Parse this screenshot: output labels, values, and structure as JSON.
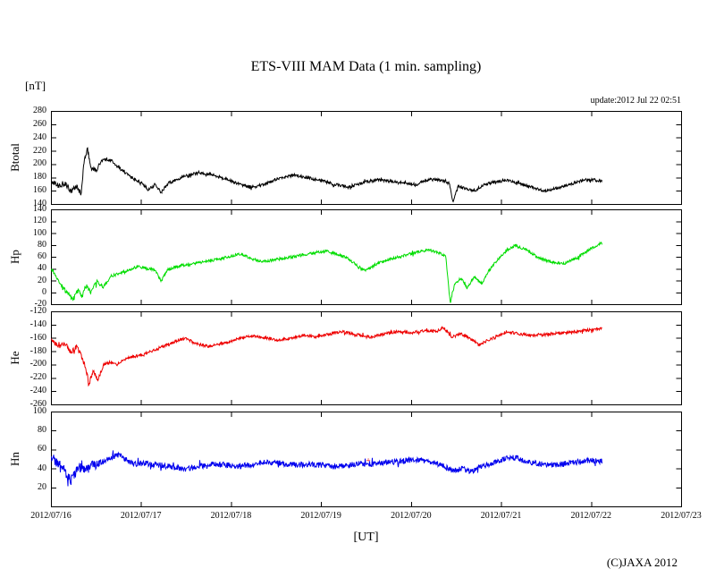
{
  "page": {
    "title": "ETS-VIII MAM Data (1 min. sampling)",
    "unit_label": "[nT]",
    "update_text": "update:2012 Jul 22 02:51",
    "x_axis_label": "[UT]",
    "copyright": "(C)JAXA 2012"
  },
  "x_ticks": [
    "2012/07/16",
    "2012/07/17",
    "2012/07/18",
    "2012/07/19",
    "2012/07/20",
    "2012/07/21",
    "2012/07/22",
    "2012/07/23"
  ],
  "chart_data": [
    {
      "type": "line",
      "name": "Btotal",
      "ylabel": "Btotal",
      "color": "#000000",
      "ylim": [
        140,
        280
      ],
      "yticks": [
        140,
        160,
        180,
        200,
        220,
        240,
        260,
        280
      ],
      "x_range_days": [
        0,
        7
      ],
      "grid": false,
      "noise_amp": 2.2,
      "x_days": [
        0,
        0.08,
        0.15,
        0.22,
        0.28,
        0.33,
        0.36,
        0.4,
        0.44,
        0.5,
        0.55,
        0.62,
        0.68,
        0.75,
        0.82,
        0.9,
        1.0,
        1.08,
        1.15,
        1.22,
        1.3,
        1.4,
        1.55,
        1.65,
        1.75,
        1.85,
        1.95,
        2.1,
        2.25,
        2.4,
        2.55,
        2.7,
        2.85,
        3.0,
        3.15,
        3.3,
        3.45,
        3.6,
        3.75,
        3.9,
        4.05,
        4.2,
        4.33,
        4.42,
        4.46,
        4.52,
        4.6,
        4.7,
        4.8,
        4.95,
        5.05,
        5.2,
        5.35,
        5.5,
        5.65,
        5.8,
        5.95,
        6.12
      ],
      "values": [
        175,
        168,
        172,
        160,
        168,
        155,
        200,
        225,
        195,
        192,
        205,
        208,
        205,
        195,
        188,
        180,
        172,
        162,
        170,
        158,
        172,
        178,
        185,
        188,
        186,
        182,
        178,
        170,
        166,
        172,
        180,
        184,
        180,
        176,
        170,
        166,
        172,
        177,
        176,
        172,
        170,
        178,
        176,
        172,
        142,
        168,
        163,
        160,
        170,
        174,
        176,
        172,
        165,
        160,
        166,
        172,
        178,
        175
      ]
    },
    {
      "type": "line",
      "name": "Hp",
      "ylabel": "Hp",
      "color": "#00dd00",
      "ylim": [
        -20,
        140
      ],
      "yticks": [
        -20,
        0,
        20,
        40,
        60,
        80,
        100,
        120,
        140
      ],
      "x_range_days": [
        0,
        7
      ],
      "grid": false,
      "noise_amp": 2.4,
      "x_days": [
        0,
        0.06,
        0.12,
        0.18,
        0.24,
        0.3,
        0.34,
        0.38,
        0.44,
        0.5,
        0.58,
        0.66,
        0.75,
        0.85,
        0.95,
        1.05,
        1.15,
        1.22,
        1.3,
        1.45,
        1.6,
        1.75,
        1.9,
        2.0,
        2.1,
        2.2,
        2.35,
        2.5,
        2.65,
        2.8,
        2.95,
        3.05,
        3.15,
        3.3,
        3.42,
        3.5,
        3.6,
        3.75,
        3.9,
        4.0,
        4.1,
        4.2,
        4.3,
        4.38,
        4.43,
        4.48,
        4.55,
        4.62,
        4.7,
        4.78,
        4.85,
        4.95,
        5.05,
        5.15,
        5.28,
        5.4,
        5.55,
        5.7,
        5.85,
        6.0,
        6.12
      ],
      "values": [
        42,
        25,
        10,
        0,
        -12,
        5,
        -8,
        12,
        2,
        18,
        10,
        28,
        32,
        38,
        44,
        42,
        38,
        20,
        40,
        46,
        50,
        54,
        58,
        62,
        66,
        58,
        52,
        56,
        60,
        64,
        68,
        70,
        66,
        58,
        42,
        38,
        48,
        56,
        62,
        66,
        70,
        72,
        68,
        62,
        -18,
        15,
        25,
        8,
        28,
        15,
        35,
        55,
        70,
        80,
        72,
        60,
        52,
        50,
        60,
        75,
        86
      ]
    },
    {
      "type": "line",
      "name": "He",
      "ylabel": "He",
      "color": "#ee0000",
      "ylim": [
        -260,
        -120
      ],
      "yticks": [
        -260,
        -240,
        -220,
        -200,
        -180,
        -160,
        -140,
        -120
      ],
      "x_range_days": [
        0,
        7
      ],
      "grid": false,
      "noise_amp": 2.2,
      "x_days": [
        0,
        0.08,
        0.15,
        0.22,
        0.28,
        0.33,
        0.38,
        0.42,
        0.46,
        0.52,
        0.58,
        0.65,
        0.72,
        0.8,
        0.9,
        1.0,
        1.1,
        1.25,
        1.4,
        1.5,
        1.6,
        1.75,
        1.9,
        2.05,
        2.2,
        2.35,
        2.5,
        2.65,
        2.8,
        2.95,
        3.1,
        3.25,
        3.4,
        3.55,
        3.7,
        3.85,
        4.0,
        4.15,
        4.28,
        4.35,
        4.45,
        4.55,
        4.65,
        4.75,
        4.85,
        4.95,
        5.05,
        5.2,
        5.35,
        5.5,
        5.65,
        5.8,
        5.95,
        6.12
      ],
      "values": [
        -163,
        -172,
        -168,
        -180,
        -172,
        -185,
        -205,
        -228,
        -210,
        -222,
        -200,
        -196,
        -200,
        -192,
        -188,
        -185,
        -180,
        -172,
        -163,
        -160,
        -168,
        -172,
        -168,
        -162,
        -156,
        -158,
        -163,
        -160,
        -155,
        -158,
        -153,
        -150,
        -155,
        -158,
        -153,
        -150,
        -152,
        -148,
        -150,
        -143,
        -158,
        -153,
        -160,
        -170,
        -163,
        -158,
        -150,
        -153,
        -156,
        -154,
        -152,
        -150,
        -148,
        -145
      ]
    },
    {
      "type": "line",
      "name": "Hn",
      "ylabel": "Hn",
      "color": "#0000ee",
      "ylim": [
        0,
        100
      ],
      "yticks": [
        20,
        40,
        60,
        80,
        100
      ],
      "x_range_days": [
        0,
        7
      ],
      "grid": false,
      "noise_amp": 3.0,
      "stray_marker": {
        "x_days": 3.52,
        "value": 49,
        "color": "#ee0000",
        "symbol": "+"
      },
      "x_days": [
        0,
        0.08,
        0.15,
        0.22,
        0.3,
        0.38,
        0.46,
        0.55,
        0.65,
        0.75,
        0.85,
        0.95,
        1.05,
        1.2,
        1.35,
        1.5,
        1.65,
        1.8,
        1.95,
        2.1,
        2.25,
        2.4,
        2.55,
        2.7,
        2.85,
        3.0,
        3.15,
        3.3,
        3.45,
        3.6,
        3.75,
        3.9,
        4.05,
        4.2,
        4.35,
        4.45,
        4.55,
        4.65,
        4.75,
        4.85,
        4.95,
        5.05,
        5.15,
        5.3,
        5.45,
        5.6,
        5.75,
        5.9,
        6.0,
        6.12
      ],
      "values": [
        52,
        45,
        38,
        28,
        42,
        38,
        44,
        46,
        52,
        55,
        48,
        45,
        46,
        44,
        42,
        40,
        43,
        45,
        44,
        43,
        45,
        47,
        46,
        44,
        45,
        44,
        42,
        44,
        46,
        45,
        47,
        48,
        50,
        48,
        44,
        38,
        41,
        37,
        42,
        44,
        47,
        51,
        52,
        47,
        45,
        44,
        46,
        48,
        49,
        48
      ]
    }
  ]
}
